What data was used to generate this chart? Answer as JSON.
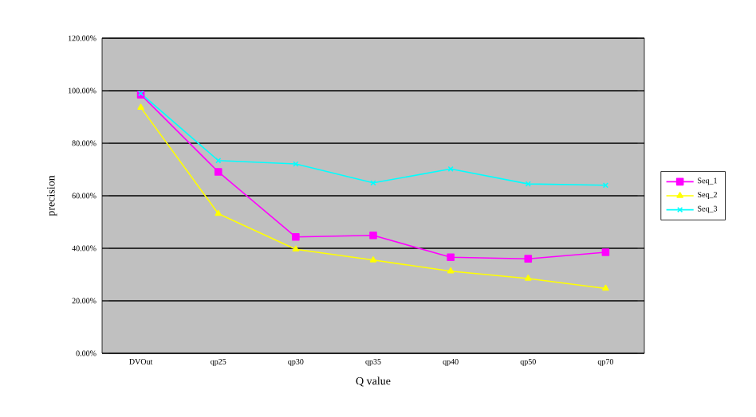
{
  "chart_data": {
    "type": "line",
    "xlabel": "Q value",
    "ylabel": "precision",
    "categories": [
      "DVOut",
      "qp25",
      "qp30",
      "qp35",
      "qp40",
      "qp50",
      "qp70"
    ],
    "series": [
      {
        "name": "Seq_1",
        "color": "#ff00ff",
        "marker": "square",
        "values": [
          98.5,
          69.1,
          44.3,
          44.9,
          36.6,
          36.0,
          38.5
        ]
      },
      {
        "name": "Seq_2",
        "color": "#ffff00",
        "marker": "triangle",
        "values": [
          93.6,
          53.2,
          39.6,
          35.5,
          31.3,
          28.5,
          24.7
        ]
      },
      {
        "name": "Seq_3",
        "color": "#00ffff",
        "marker": "cross",
        "values": [
          99.0,
          73.4,
          72.1,
          64.9,
          70.2,
          64.5,
          64.0
        ]
      }
    ],
    "ylim": [
      0,
      120
    ],
    "yticks": [
      {
        "value": 0,
        "label": "0.00%"
      },
      {
        "value": 20,
        "label": "20.00%"
      },
      {
        "value": 40,
        "label": "40.00%"
      },
      {
        "value": 60,
        "label": "60.00%"
      },
      {
        "value": 80,
        "label": "80.00%"
      },
      {
        "value": 100,
        "label": "100.00%"
      },
      {
        "value": 120,
        "label": "120.00%"
      }
    ],
    "grid": "y",
    "legend": "right"
  }
}
